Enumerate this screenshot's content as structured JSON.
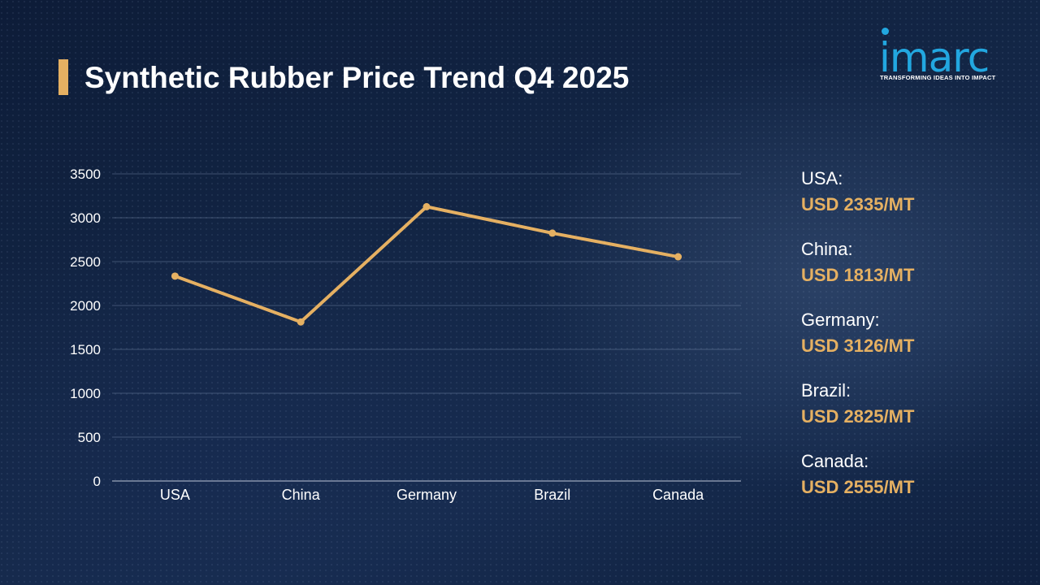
{
  "title": "Synthetic Rubber Price Trend Q4 2025",
  "logo": {
    "word": "imarc",
    "tagline": "TRANSFORMING IDEAS INTO IMPACT",
    "color": "#22a7e0"
  },
  "colors": {
    "accent": "#e5b062",
    "background": "#0f1f3d",
    "text": "#ffffff"
  },
  "chart_data": {
    "type": "line",
    "categories": [
      "USA",
      "China",
      "Germany",
      "Brazil",
      "Canada"
    ],
    "series": [
      {
        "values": [
          2335,
          1813,
          3126,
          2825,
          2555
        ],
        "color": "#e5b062"
      }
    ],
    "yticks": [
      0,
      500,
      1000,
      1500,
      2000,
      2500,
      3000,
      3500
    ],
    "ylim": [
      0,
      3500
    ],
    "grid": true,
    "title": "",
    "xlabel": "",
    "ylabel": ""
  },
  "legend": [
    {
      "country": "USA:",
      "price": "USD 2335/MT"
    },
    {
      "country": "China:",
      "price": "USD 1813/MT"
    },
    {
      "country": "Germany:",
      "price": "USD 3126/MT"
    },
    {
      "country": "Brazil:",
      "price": "USD 2825/MT"
    },
    {
      "country": "Canada:",
      "price": "USD 2555/MT"
    }
  ]
}
